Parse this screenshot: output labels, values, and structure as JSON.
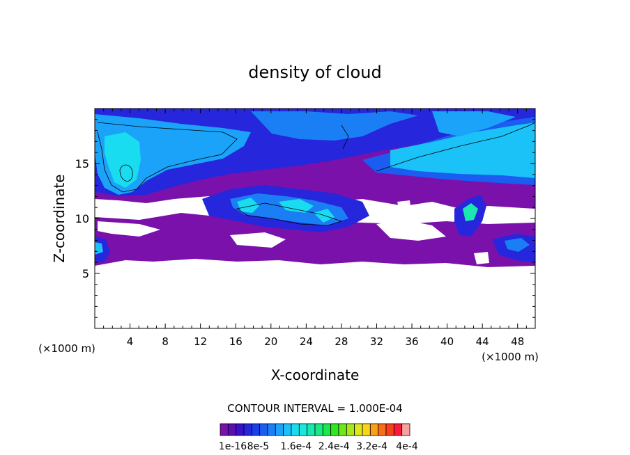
{
  "chart_data": {
    "type": "heatmap",
    "title": "density of cloud",
    "xlabel": "X-coordinate",
    "ylabel": "Z-coordinate",
    "x_unit_left": "(×1000 m)",
    "x_unit_right": "(×1000 m)",
    "xlim": [
      0,
      50
    ],
    "ylim": [
      0,
      20
    ],
    "x_ticks": [
      4,
      8,
      12,
      16,
      20,
      24,
      28,
      32,
      36,
      40,
      44,
      48
    ],
    "y_ticks": [
      5,
      10,
      15
    ],
    "contour_interval_text": "CONTOUR INTERVAL = 1.000E-04",
    "colorbar": {
      "levels": 24,
      "tick_labels": [
        "1e-16",
        "8e-5",
        "1.6e-4",
        "2.4e-4",
        "3.2e-4",
        "4e-4"
      ],
      "colors": [
        "#7a11ab",
        "#5a0fb0",
        "#3c10c8",
        "#2626dc",
        "#1a3ee8",
        "#1a5df0",
        "#1a7ff5",
        "#1aa3f8",
        "#1ac2f8",
        "#1adcf0",
        "#1ae8d8",
        "#1ae8b0",
        "#1ae880",
        "#1ae84c",
        "#30e820",
        "#6ee81a",
        "#a8e81a",
        "#dce81a",
        "#f8d41a",
        "#f8a01a",
        "#f86c1a",
        "#f8401a",
        "#f81a3c",
        "#f8a0a0"
      ]
    },
    "regions": [
      {
        "name": "upper-cloud-layer",
        "x": [
          0,
          50
        ],
        "z": [
          11.5,
          19.7
        ],
        "level": 5
      },
      {
        "name": "lower-cloud-layer",
        "x": [
          0,
          50
        ],
        "z": [
          6,
          10
        ],
        "level": 1
      },
      {
        "name": "left-vortex-core",
        "x": [
          0.5,
          5
        ],
        "z": [
          12.5,
          18
        ],
        "level": 9
      },
      {
        "name": "mid-convective-cell",
        "x": [
          15,
          29
        ],
        "z": [
          8.5,
          12
        ],
        "level": 9
      },
      {
        "name": "right-upper-plume",
        "x": [
          32,
          50
        ],
        "z": [
          14,
          18.8
        ],
        "level": 10
      },
      {
        "name": "right-convective-cell",
        "x": [
          41,
          44
        ],
        "z": [
          8.8,
          11.5
        ],
        "level": 11
      },
      {
        "name": "right-low-cell",
        "x": [
          45,
          50
        ],
        "z": [
          6,
          8.5
        ],
        "level": 6
      },
      {
        "name": "left-low-cell",
        "x": [
          0,
          1.5
        ],
        "z": [
          6,
          8.5
        ],
        "level": 7
      }
    ]
  }
}
